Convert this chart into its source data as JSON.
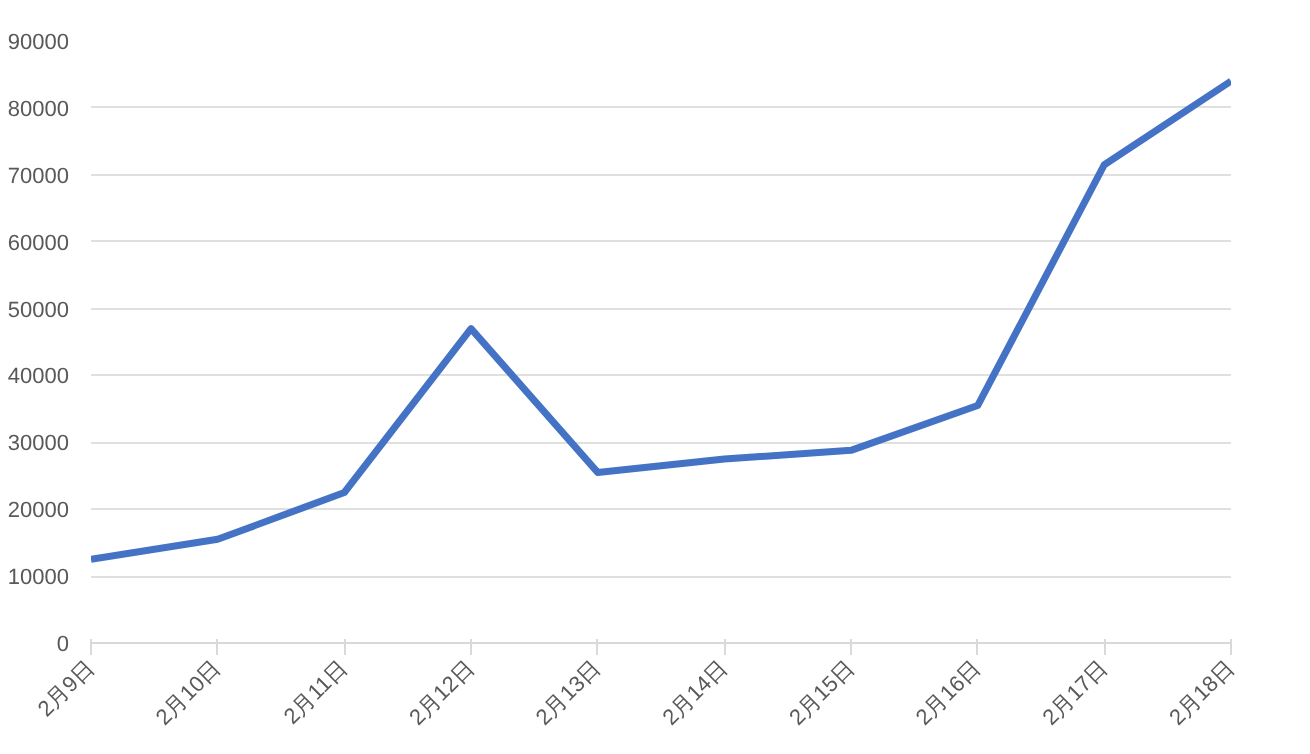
{
  "chart_data": {
    "type": "line",
    "categories": [
      "2月9日",
      "2月10日",
      "2月11日",
      "2月12日",
      "2月13日",
      "2月14日",
      "2月15日",
      "2月16日",
      "2月17日",
      "2月18日"
    ],
    "series": [
      {
        "color": "#4472c4",
        "values": [
          12500,
          15500,
          22500,
          47000,
          25500,
          27500,
          28800,
          35500,
          71500,
          84000
        ]
      }
    ],
    "ylim": [
      0,
      90000
    ],
    "yticks": [
      0,
      10000,
      20000,
      30000,
      40000,
      50000,
      60000,
      70000,
      80000,
      90000
    ],
    "grid": "y",
    "marker": "none",
    "line_style": "solid"
  }
}
